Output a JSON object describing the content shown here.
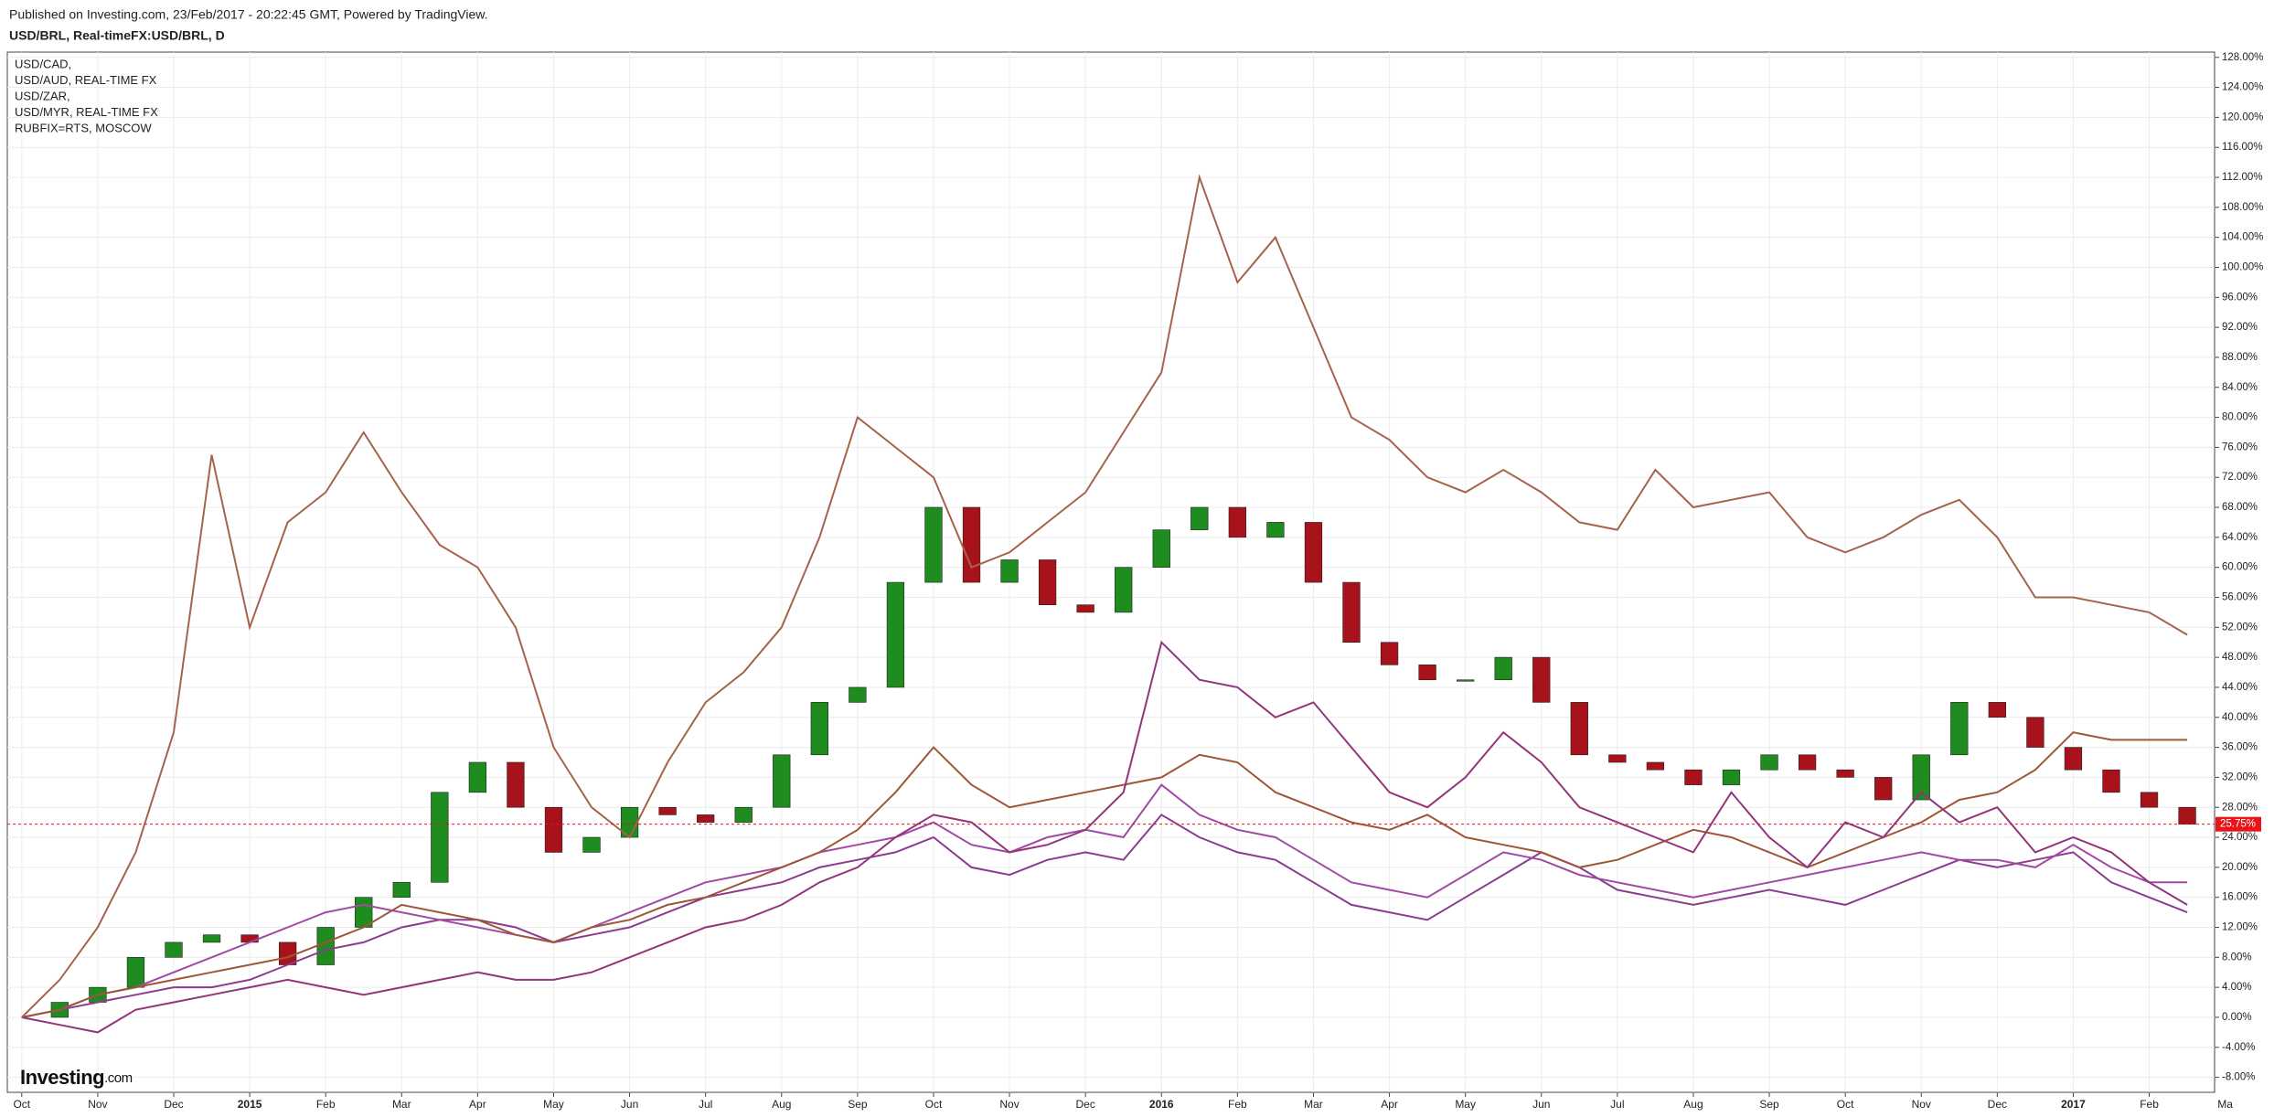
{
  "header": {
    "published": "Published on Investing.com, 23/Feb/2017 - 20:22:45 GMT, Powered by TradingView.",
    "symbol": "USD/BRL, Real-timeFX:USD/BRL, D"
  },
  "logo": {
    "brand": "Investing",
    "suffix": ".com"
  },
  "chart_data": {
    "type": "line",
    "legend": "top-left",
    "grid": true,
    "xlim": [
      -0.19,
      28.86
    ],
    "ylim": [
      -10,
      128.7
    ],
    "xticks": [
      {
        "value": 0,
        "label": "Oct"
      },
      {
        "value": 1,
        "label": "Nov"
      },
      {
        "value": 2,
        "label": "Dec"
      },
      {
        "value": 3,
        "label": "2015"
      },
      {
        "value": 4,
        "label": "Feb"
      },
      {
        "value": 5,
        "label": "Mar"
      },
      {
        "value": 6,
        "label": "Apr"
      },
      {
        "value": 7,
        "label": "May"
      },
      {
        "value": 8,
        "label": "Jun"
      },
      {
        "value": 9,
        "label": "Jul"
      },
      {
        "value": 10,
        "label": "Aug"
      },
      {
        "value": 11,
        "label": "Sep"
      },
      {
        "value": 12,
        "label": "Oct"
      },
      {
        "value": 13,
        "label": "Nov"
      },
      {
        "value": 14,
        "label": "Dec"
      },
      {
        "value": 15,
        "label": "2016"
      },
      {
        "value": 16,
        "label": "Feb"
      },
      {
        "value": 17,
        "label": "Mar"
      },
      {
        "value": 18,
        "label": "Apr"
      },
      {
        "value": 19,
        "label": "May"
      },
      {
        "value": 20,
        "label": "Jun"
      },
      {
        "value": 21,
        "label": "Jul"
      },
      {
        "value": 22,
        "label": "Aug"
      },
      {
        "value": 23,
        "label": "Sep"
      },
      {
        "value": 24,
        "label": "Oct"
      },
      {
        "value": 25,
        "label": "Nov"
      },
      {
        "value": 26,
        "label": "Dec"
      },
      {
        "value": 27,
        "label": "2017"
      },
      {
        "value": 28,
        "label": "Feb"
      },
      {
        "value": 29,
        "label": "Ma"
      }
    ],
    "yticks": [
      {
        "value": 128,
        "label": "128.00%"
      },
      {
        "value": 124,
        "label": "124.00%"
      },
      {
        "value": 120,
        "label": "120.00%"
      },
      {
        "value": 116,
        "label": "116.00%"
      },
      {
        "value": 112,
        "label": "112.00%"
      },
      {
        "value": 108,
        "label": "108.00%"
      },
      {
        "value": 104,
        "label": "104.00%"
      },
      {
        "value": 100,
        "label": "100.00%"
      },
      {
        "value": 96,
        "label": "96.00%"
      },
      {
        "value": 92,
        "label": "92.00%"
      },
      {
        "value": 88,
        "label": "88.00%"
      },
      {
        "value": 84,
        "label": "84.00%"
      },
      {
        "value": 80,
        "label": "80.00%"
      },
      {
        "value": 76,
        "label": "76.00%"
      },
      {
        "value": 72,
        "label": "72.00%"
      },
      {
        "value": 68,
        "label": "68.00%"
      },
      {
        "value": 64,
        "label": "64.00%"
      },
      {
        "value": 60,
        "label": "60.00%"
      },
      {
        "value": 56,
        "label": "56.00%"
      },
      {
        "value": 52,
        "label": "52.00%"
      },
      {
        "value": 48,
        "label": "48.00%"
      },
      {
        "value": 44,
        "label": "44.00%"
      },
      {
        "value": 40,
        "label": "40.00%"
      },
      {
        "value": 36,
        "label": "36.00%"
      },
      {
        "value": 32,
        "label": "32.00%"
      },
      {
        "value": 28,
        "label": "28.00%"
      },
      {
        "value": 24,
        "label": "24.00%"
      },
      {
        "value": 20,
        "label": "20.00%"
      },
      {
        "value": 16,
        "label": "16.00%"
      },
      {
        "value": 12,
        "label": "12.00%"
      },
      {
        "value": 8,
        "label": "8.00%"
      },
      {
        "value": 4,
        "label": "4.00%"
      },
      {
        "value": 0,
        "label": "0.00%"
      },
      {
        "value": -4,
        "label": "-4.00%"
      },
      {
        "value": -8,
        "label": "-8.00%"
      }
    ],
    "x": [
      0,
      0.5,
      1,
      1.5,
      2,
      2.5,
      3,
      3.5,
      4,
      4.5,
      5,
      5.5,
      6,
      6.5,
      7,
      7.5,
      8,
      8.5,
      9,
      9.5,
      10,
      10.5,
      11,
      11.5,
      12,
      12.5,
      13,
      13.5,
      14,
      14.5,
      15,
      15.5,
      16,
      16.5,
      17,
      17.5,
      18,
      18.5,
      19,
      19.5,
      20,
      20.5,
      21,
      21.5,
      22,
      22.5,
      23,
      23.5,
      24,
      24.5,
      25,
      25.5,
      26,
      26.5,
      27,
      27.5,
      28,
      28.5
    ],
    "candle_close": [
      0,
      2,
      4,
      8,
      10,
      11,
      10,
      7,
      12,
      16,
      18,
      30,
      34,
      28,
      22,
      24,
      28,
      27,
      26,
      28,
      35,
      42,
      44,
      58,
      68,
      58,
      61,
      55,
      54,
      60,
      65,
      68,
      64,
      66,
      58,
      50,
      47,
      45,
      45,
      48,
      42,
      35,
      34,
      33,
      31,
      33,
      35,
      33,
      32,
      29,
      35,
      42,
      40,
      36,
      33,
      30,
      28,
      25.75
    ],
    "up_color": "#1e8c1e",
    "down_color": "#a8121a",
    "last_value_label": "25.75%",
    "last_value_color": "#e8141a",
    "series": [
      {
        "name": "USD/CAD,",
        "color": "#8a3d8e",
        "values": [
          0,
          1,
          2,
          3,
          4,
          4,
          5,
          7,
          9,
          10,
          12,
          13,
          13,
          12,
          10,
          11,
          12,
          14,
          16,
          17,
          18,
          20,
          21,
          22,
          24,
          20,
          19,
          21,
          22,
          21,
          27,
          24,
          22,
          21,
          18,
          15,
          14,
          13,
          16,
          19,
          22,
          20,
          17,
          16,
          15,
          16,
          17,
          16,
          15,
          17,
          19,
          21,
          20,
          21,
          22,
          18,
          16,
          14
        ]
      },
      {
        "name": "USD/AUD, REAL-TIME FX",
        "color": "#a04aa4",
        "values": [
          0,
          1,
          3,
          4,
          6,
          8,
          10,
          12,
          14,
          15,
          14,
          13,
          12,
          11,
          10,
          12,
          14,
          16,
          18,
          19,
          20,
          22,
          23,
          24,
          26,
          23,
          22,
          24,
          25,
          24,
          31,
          27,
          25,
          24,
          21,
          18,
          17,
          16,
          19,
          22,
          21,
          19,
          18,
          17,
          16,
          17,
          18,
          19,
          20,
          21,
          22,
          21,
          21,
          20,
          23,
          20,
          18,
          18
        ]
      },
      {
        "name": "USD/ZAR,",
        "color": "#9e5638",
        "values": [
          0,
          1,
          3,
          4,
          5,
          6,
          7,
          8,
          10,
          12,
          15,
          14,
          13,
          11,
          10,
          12,
          13,
          15,
          16,
          18,
          20,
          22,
          25,
          30,
          36,
          31,
          28,
          29,
          30,
          31,
          32,
          35,
          34,
          30,
          28,
          26,
          25,
          27,
          24,
          23,
          22,
          20,
          21,
          23,
          25,
          24,
          22,
          20,
          22,
          24,
          26,
          29,
          30,
          33,
          38,
          37,
          37,
          37
        ]
      },
      {
        "name": "USD/MYR, REAL-TIME FX",
        "color": "#93357a",
        "values": [
          0,
          -1,
          -2,
          1,
          2,
          3,
          4,
          5,
          4,
          3,
          4,
          5,
          6,
          5,
          5,
          6,
          8,
          10,
          12,
          13,
          15,
          18,
          20,
          24,
          27,
          26,
          22,
          23,
          25,
          30,
          50,
          45,
          44,
          40,
          42,
          36,
          30,
          28,
          32,
          38,
          34,
          28,
          26,
          24,
          22,
          30,
          24,
          20,
          26,
          24,
          30,
          26,
          28,
          22,
          24,
          22,
          18,
          15
        ]
      },
      {
        "name": "RUBFIX=RTS, MOSCOW",
        "color": "#a6634c",
        "values": [
          0,
          5,
          12,
          22,
          38,
          75,
          52,
          66,
          70,
          78,
          70,
          63,
          60,
          52,
          36,
          28,
          24,
          34,
          42,
          46,
          52,
          64,
          80,
          76,
          72,
          60,
          62,
          66,
          70,
          78,
          86,
          112,
          98,
          104,
          92,
          80,
          77,
          72,
          70,
          73,
          70,
          66,
          65,
          73,
          68,
          69,
          70,
          64,
          62,
          64,
          67,
          69,
          64,
          56,
          56,
          55,
          54,
          51
        ]
      }
    ]
  }
}
